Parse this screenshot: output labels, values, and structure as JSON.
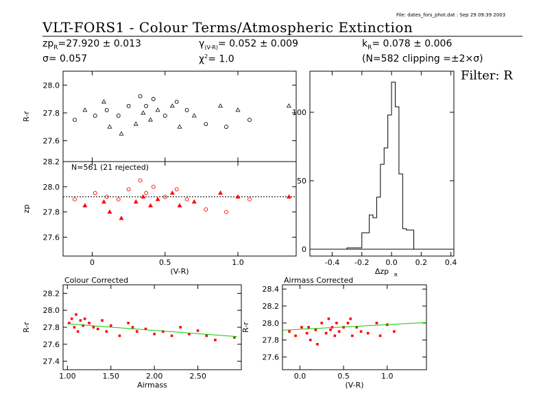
{
  "header": {
    "file_stamp": "File: dates_fors_phot.dat : Sep 29 09:39 2003",
    "title": "VLT-FORS1 - Colour Terms/Atmospheric Extinction",
    "zp_text": "zp",
    "zp_sub": "R",
    "zp_value": "=27.920 ± 0.013",
    "gamma_text": "γ",
    "gamma_sub": "(V-R)",
    "gamma_value": "= 0.052 ± 0.009",
    "k_text": "k",
    "k_sub": "R",
    "k_value": "= 0.078 ± 0.006",
    "sigma_text": "σ= 0.057",
    "chi2_text": "χ",
    "chi2_sup": "2",
    "chi2_value": "=  1.0",
    "clip_text": "(N=582 clipping =±2×σ)",
    "filter_label": "Filter: R",
    "rejected_note": "N=561 (21 rejected)"
  },
  "colors": {
    "observed": "#000000",
    "fitted": "#ff0000",
    "fit_line": "#00cc00",
    "axis": "#000000"
  },
  "chart_data": [
    {
      "type": "scatter",
      "panel": "raw-magnitudes",
      "ylabel": "R-r",
      "xlim": [
        -0.2,
        1.4
      ],
      "ylim": [
        27.45,
        28.1
      ],
      "yticks": [
        27.6,
        27.8,
        28.0
      ],
      "xticks": [
        0,
        0.5,
        1.0
      ],
      "series": [
        {
          "marker": "circle+triangle",
          "x": [
            -0.12,
            -0.05,
            0.02,
            0.08,
            0.1,
            0.12,
            0.18,
            0.2,
            0.25,
            0.3,
            0.33,
            0.35,
            0.37,
            0.4,
            0.42,
            0.45,
            0.5,
            0.55,
            0.58,
            0.6,
            0.65,
            0.7,
            0.78,
            0.88,
            0.92,
            1.0,
            1.08,
            1.35
          ],
          "y": [
            27.75,
            27.82,
            27.78,
            27.88,
            27.82,
            27.7,
            27.78,
            27.65,
            27.85,
            27.72,
            27.92,
            27.8,
            27.85,
            27.75,
            27.9,
            27.82,
            27.78,
            27.85,
            27.88,
            27.7,
            27.82,
            27.78,
            27.72,
            27.85,
            27.7,
            27.82,
            27.75,
            27.85
          ]
        }
      ]
    },
    {
      "type": "scatter",
      "panel": "zeropoint-fitted",
      "ylabel": "zp",
      "xlabel": "(V-R)",
      "xlim": [
        -0.2,
        1.4
      ],
      "ylim": [
        27.45,
        28.2
      ],
      "yticks": [
        27.6,
        27.8,
        28.0,
        28.2
      ],
      "xticks": [
        0,
        0.5,
        1.0
      ],
      "xticklabels": [
        "0",
        "0.5",
        "1.0"
      ],
      "zeropoint_line": 27.92,
      "series": [
        {
          "marker": "circle+triangle",
          "x": [
            -0.12,
            -0.05,
            0.02,
            0.08,
            0.1,
            0.12,
            0.18,
            0.2,
            0.25,
            0.3,
            0.33,
            0.35,
            0.37,
            0.4,
            0.42,
            0.45,
            0.5,
            0.55,
            0.58,
            0.6,
            0.65,
            0.7,
            0.78,
            0.88,
            0.92,
            1.0,
            1.08,
            1.35
          ],
          "y": [
            27.9,
            27.85,
            27.95,
            27.88,
            27.92,
            27.8,
            27.9,
            27.75,
            27.98,
            27.88,
            28.05,
            27.92,
            27.95,
            27.85,
            28.0,
            27.9,
            27.92,
            27.95,
            27.98,
            27.85,
            27.9,
            27.88,
            27.82,
            27.95,
            27.8,
            27.92,
            27.9,
            27.92
          ]
        }
      ]
    },
    {
      "type": "bar",
      "panel": "residual-histogram",
      "xlabel": "Δzp",
      "xlabel_sub": "R",
      "xlim": [
        -0.55,
        0.42
      ],
      "ylim": [
        -5,
        130
      ],
      "yticks": [
        0,
        50,
        100
      ],
      "xticks": [
        -0.4,
        -0.2,
        0.0,
        0.2,
        0.4
      ],
      "xticklabels": [
        "-0.4",
        "-0.2",
        "0.0",
        "0.2",
        "0.4"
      ],
      "bin_edges": [
        -0.3,
        -0.2,
        -0.15,
        -0.125,
        -0.1,
        -0.075,
        -0.05,
        -0.025,
        0.0,
        0.025,
        0.05,
        0.075,
        0.1,
        0.15
      ],
      "counts": [
        1,
        12,
        25,
        23,
        38,
        62,
        74,
        98,
        122,
        104,
        55,
        15,
        14
      ]
    },
    {
      "type": "scatter",
      "panel": "colour-corrected",
      "title": "Colour Corrected",
      "ylabel": "R-r",
      "xlabel": "Airmass",
      "xlim": [
        0.95,
        3.0
      ],
      "ylim": [
        27.3,
        28.3
      ],
      "yticks": [
        27.4,
        27.6,
        27.8,
        28.0,
        28.2
      ],
      "xticks": [
        1.0,
        1.5,
        2.0,
        2.5
      ],
      "xticklabels": [
        "1.00",
        "1.50",
        "2.00",
        "2.50"
      ],
      "fit_line": {
        "x": [
          1.0,
          2.95
        ],
        "y": [
          27.84,
          27.69
        ]
      },
      "series": [
        {
          "marker": "dot",
          "x": [
            1.02,
            1.05,
            1.08,
            1.1,
            1.12,
            1.15,
            1.18,
            1.2,
            1.25,
            1.3,
            1.35,
            1.4,
            1.45,
            1.5,
            1.6,
            1.7,
            1.75,
            1.8,
            1.9,
            2.0,
            2.1,
            2.2,
            2.3,
            2.4,
            2.5,
            2.6,
            2.7,
            2.92
          ],
          "y": [
            27.85,
            27.9,
            27.8,
            27.95,
            27.75,
            27.88,
            27.82,
            27.9,
            27.85,
            27.8,
            27.78,
            27.88,
            27.75,
            27.82,
            27.7,
            27.85,
            27.8,
            27.75,
            27.78,
            27.72,
            27.75,
            27.7,
            27.8,
            27.72,
            27.76,
            27.7,
            27.65,
            27.68
          ]
        }
      ]
    },
    {
      "type": "scatter",
      "panel": "airmass-corrected",
      "title": "Airmass Corrected",
      "ylabel": "R-r",
      "xlabel": "(V-R)",
      "xlim": [
        -0.2,
        1.45
      ],
      "ylim": [
        27.45,
        28.45
      ],
      "yticks": [
        27.6,
        27.8,
        28.0,
        28.2,
        28.4
      ],
      "xticks": [
        0,
        0.5,
        1.0
      ],
      "xticklabels": [
        "0.0",
        "0.5",
        "1.0"
      ],
      "fit_line": {
        "x": [
          -0.2,
          1.45
        ],
        "y": [
          27.915,
          28.005
        ]
      },
      "series": [
        {
          "marker": "dot",
          "x": [
            -0.12,
            -0.05,
            0.02,
            0.08,
            0.1,
            0.12,
            0.18,
            0.2,
            0.25,
            0.3,
            0.33,
            0.35,
            0.37,
            0.4,
            0.42,
            0.45,
            0.5,
            0.55,
            0.58,
            0.6,
            0.65,
            0.7,
            0.78,
            0.88,
            0.92,
            1.0,
            1.08
          ],
          "y": [
            27.9,
            27.85,
            27.95,
            27.88,
            27.95,
            27.8,
            27.92,
            27.75,
            28.0,
            27.88,
            28.05,
            27.92,
            27.95,
            27.85,
            28.0,
            27.9,
            27.95,
            28.0,
            28.05,
            27.85,
            27.95,
            27.9,
            27.88,
            28.0,
            27.85,
            27.98,
            27.9
          ]
        }
      ]
    }
  ]
}
